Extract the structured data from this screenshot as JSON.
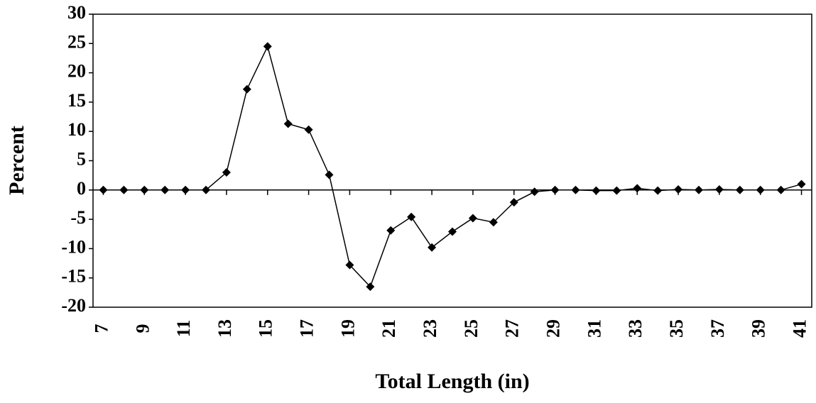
{
  "chart_data": {
    "type": "line",
    "x_label": "Total Length (in)",
    "y_label": "Percent",
    "x": [
      7,
      8,
      9,
      10,
      11,
      12,
      13,
      14,
      15,
      16,
      17,
      18,
      19,
      20,
      21,
      22,
      23,
      24,
      25,
      26,
      27,
      28,
      29,
      30,
      31,
      32,
      33,
      34,
      35,
      36,
      37,
      38,
      39,
      40,
      41
    ],
    "series": [
      {
        "color": "#000000",
        "values": [
          0,
          0,
          0,
          0,
          0,
          0,
          3,
          17.2,
          24.5,
          11.3,
          10.3,
          2.6,
          -12.8,
          -16.5,
          -6.9,
          -4.6,
          -9.8,
          -7.1,
          -4.8,
          -5.5,
          -2.1,
          -0.3,
          0,
          0,
          -0.1,
          -0.1,
          0.3,
          -0.1,
          0.1,
          0,
          0.1,
          0,
          0,
          0,
          1
        ]
      }
    ],
    "xlim": [
      6.5,
      41.5
    ],
    "xticks": [
      7,
      9,
      11,
      13,
      15,
      17,
      19,
      21,
      23,
      25,
      27,
      29,
      31,
      33,
      35,
      37,
      39,
      41
    ],
    "ylim": [
      -20,
      30
    ],
    "yticks": [
      -20,
      -15,
      -10,
      -5,
      0,
      5,
      10,
      15,
      20,
      25,
      30
    ],
    "grid": false
  }
}
